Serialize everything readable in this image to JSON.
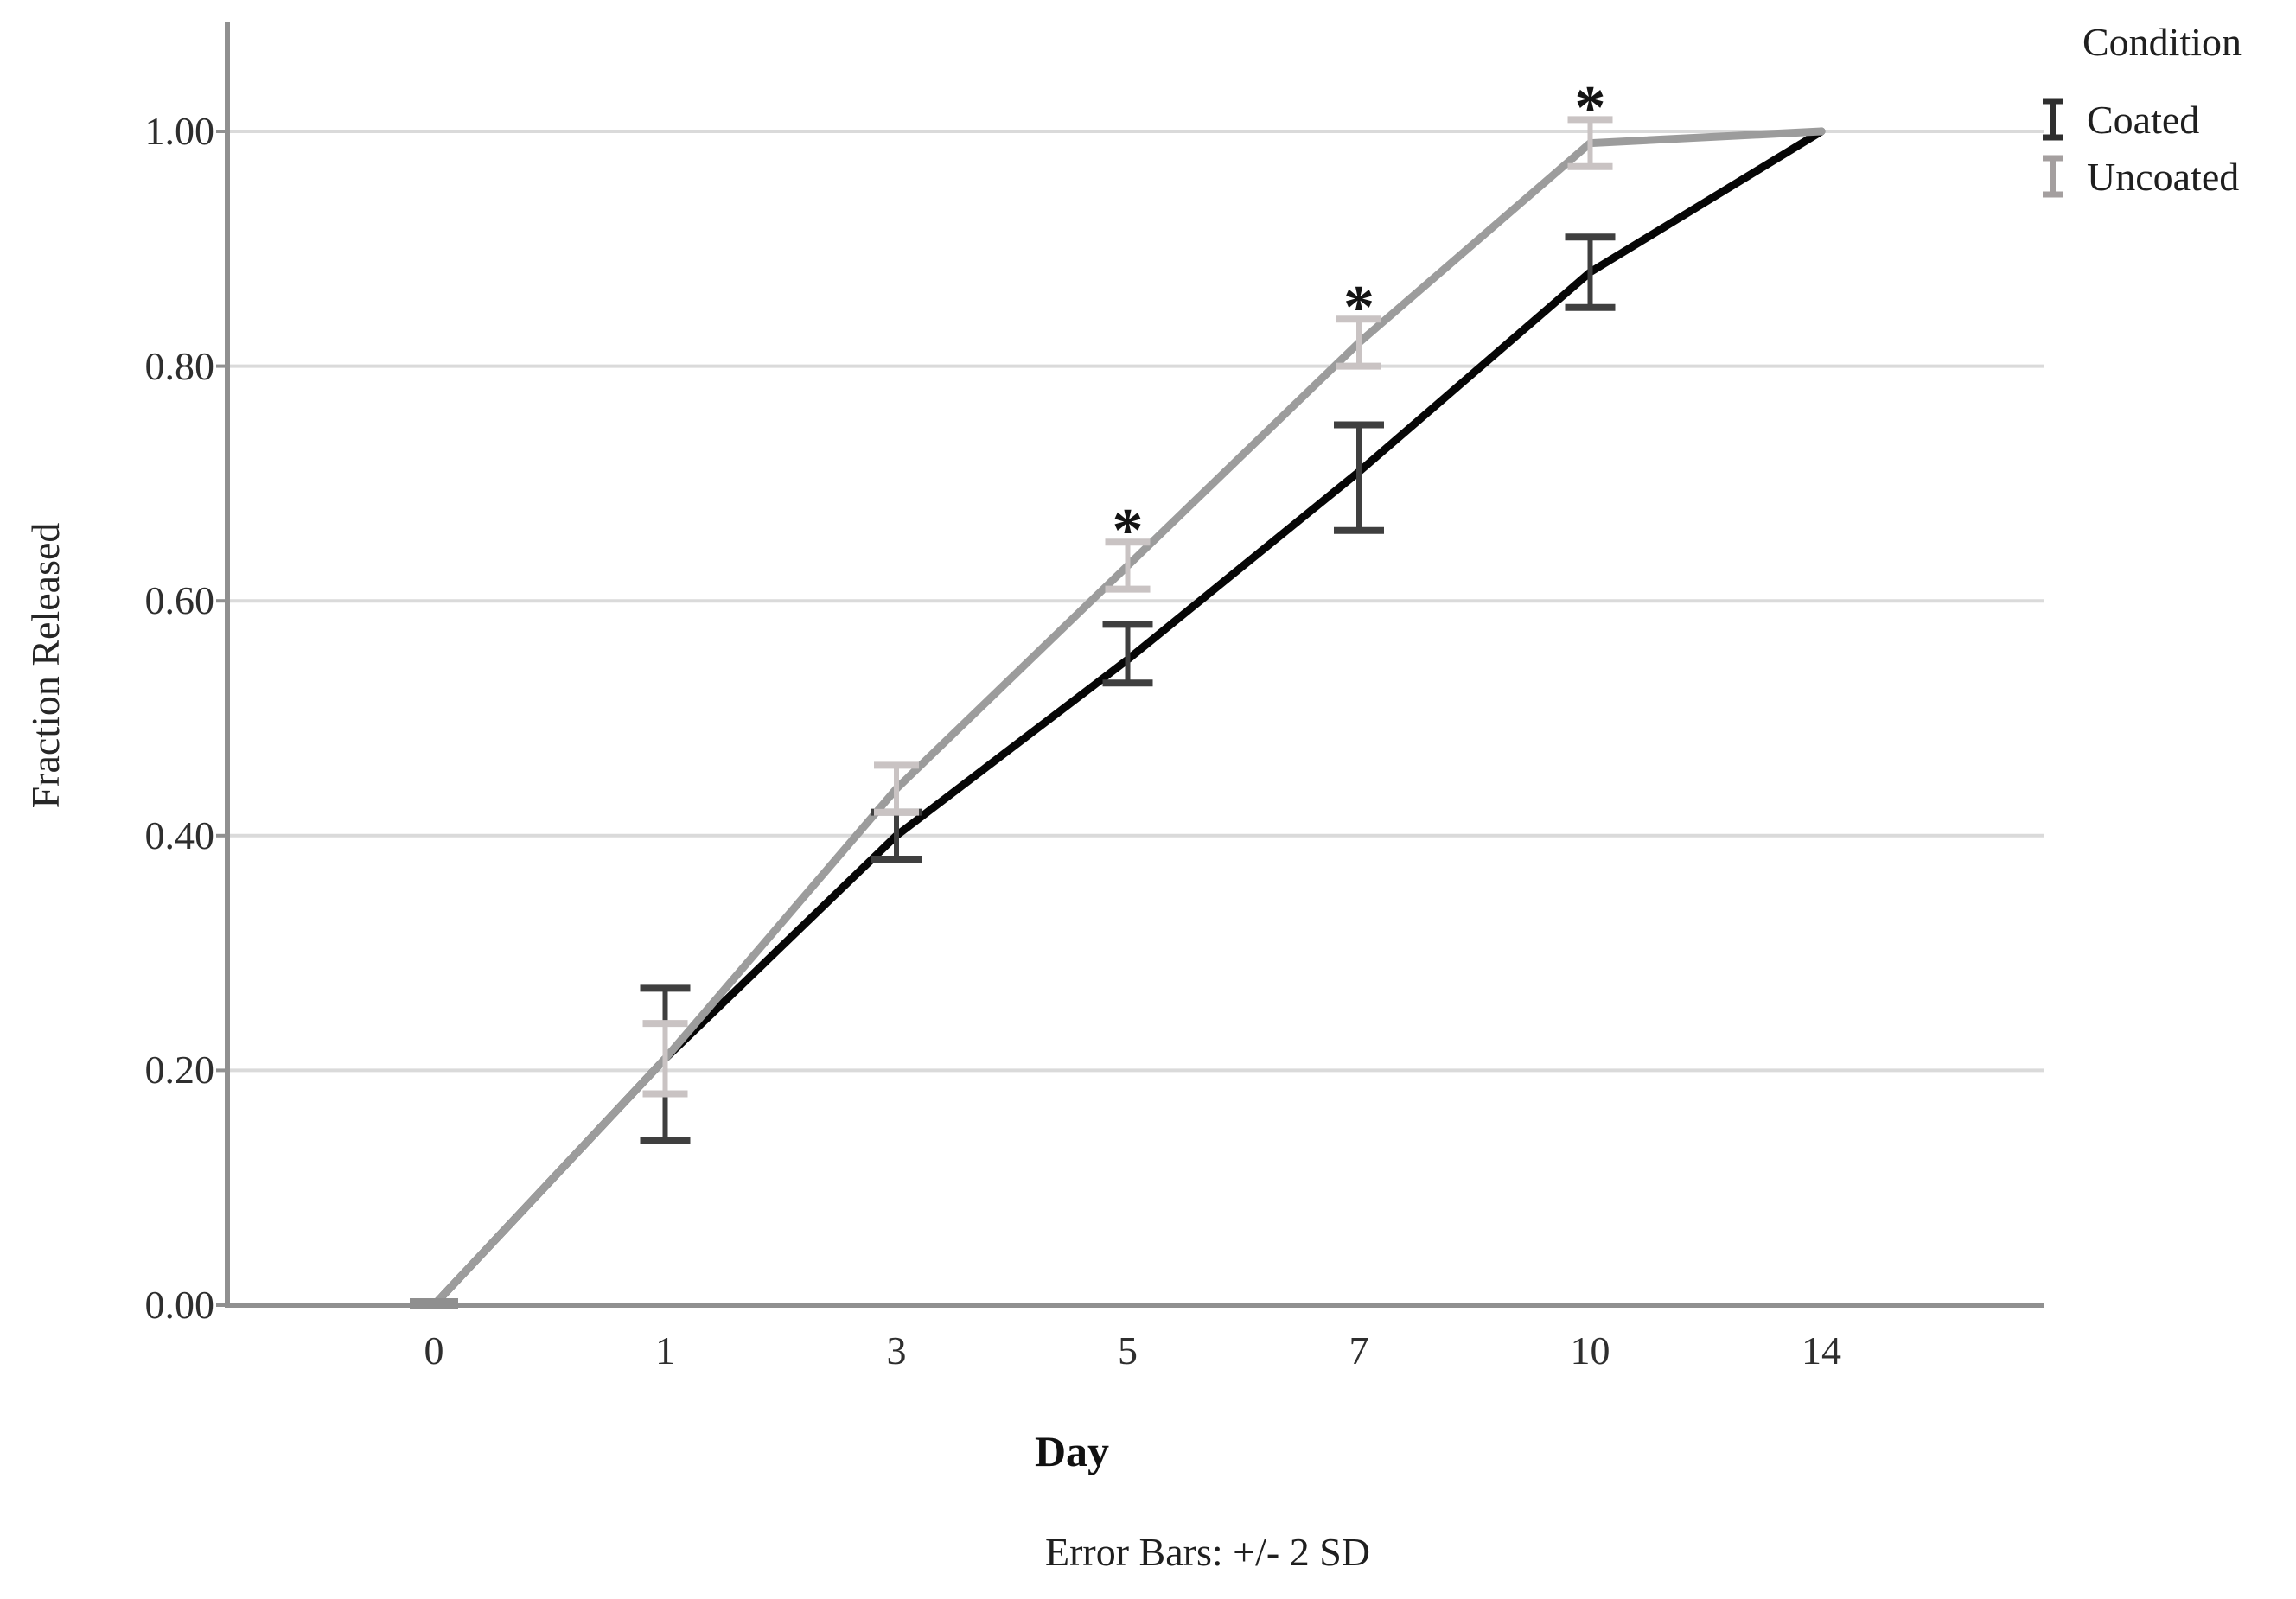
{
  "figure": {
    "y_axis": {
      "title": "Fraction Released",
      "tick_labels": [
        "1.00",
        "0.80",
        "0.60",
        "0.40",
        "0.20",
        "0.00"
      ]
    },
    "x_axis": {
      "title": "Day",
      "tick_labels": [
        "0",
        "1",
        "3",
        "5",
        "7",
        "10",
        "14"
      ]
    },
    "footnote": "Error Bars: +/- 2 SD",
    "legend": {
      "title": "Condition",
      "items": [
        {
          "label": "Coated",
          "glyph": "error-bar-icon",
          "glyph_color": "#2f2f2f"
        },
        {
          "label": "Uncoated",
          "glyph": "error-bar-icon",
          "glyph_color": "#a49f9f"
        }
      ]
    }
  },
  "chart_data": {
    "type": "line",
    "title": "",
    "xlabel": "Day",
    "ylabel": "Fraction Released",
    "x_type": "categorical",
    "categories": [
      "0",
      "1",
      "3",
      "5",
      "7",
      "10",
      "14"
    ],
    "yticks": [
      0.0,
      0.2,
      0.4,
      0.6,
      0.8,
      1.0
    ],
    "ytick_labels": [
      "0.00",
      "0.20",
      "0.40",
      "0.60",
      "0.80",
      "1.00"
    ],
    "ylim": [
      0.0,
      1.09
    ],
    "grid": "horizontal",
    "legend_title": "Condition",
    "legend_position": "top-right-outside",
    "error_bar_note": "Error Bars: +/- 2 SD",
    "error_bar_meaning": "+/- 2 SD",
    "series": [
      {
        "name": "Coated",
        "line_color": "#060606",
        "error_bar_color": "#3f3f3f",
        "values": [
          0.0,
          0.21,
          0.4,
          0.55,
          0.71,
          0.88,
          1.0
        ],
        "error_low": [
          0.0,
          0.14,
          0.38,
          0.53,
          0.66,
          0.85,
          1.0
        ],
        "error_high": [
          0.0,
          0.27,
          0.42,
          0.58,
          0.75,
          0.91,
          1.0
        ]
      },
      {
        "name": "Uncoated",
        "line_color": "#9c9c9c",
        "error_bar_color": "#c9c3c3",
        "values": [
          0.0,
          0.21,
          0.44,
          0.63,
          0.82,
          0.99,
          1.0
        ],
        "error_low": [
          0.0,
          0.18,
          0.42,
          0.61,
          0.8,
          0.97,
          1.0
        ],
        "error_high": [
          0.0,
          0.24,
          0.46,
          0.65,
          0.84,
          1.01,
          1.0
        ]
      }
    ],
    "significance_markers": [
      {
        "category": "5",
        "symbol": "*"
      },
      {
        "category": "7",
        "symbol": "*"
      },
      {
        "category": "10",
        "symbol": "*"
      }
    ]
  }
}
